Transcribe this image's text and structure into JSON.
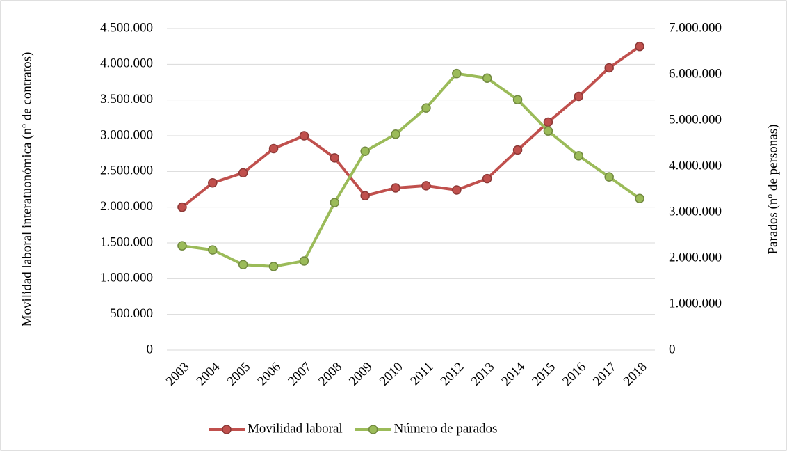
{
  "chart_data": {
    "type": "line",
    "categories": [
      "2003",
      "2004",
      "2005",
      "2006",
      "2007",
      "2008",
      "2009",
      "2010",
      "2011",
      "2012",
      "2013",
      "2014",
      "2015",
      "2016",
      "2017",
      "2018"
    ],
    "series": [
      {
        "name": "Movilidad laboral",
        "color": "#c0504d",
        "values": [
          2000000,
          2340000,
          2480000,
          2820000,
          3000000,
          2690000,
          2160000,
          2270000,
          2300000,
          2240000,
          2400000,
          2800000,
          3190000,
          3550000,
          3950000,
          4250000
        ]
      },
      {
        "name": "Número de parados",
        "color": "#9bbb59",
        "axis": "y2",
        "values": [
          2270000,
          2180000,
          1860000,
          1820000,
          1940000,
          3210000,
          4330000,
          4700000,
          5270000,
          6020000,
          5920000,
          5450000,
          4770000,
          4230000,
          3770000,
          3300000
        ]
      }
    ],
    "y_label": "Movilidad laboral interatuonómica (nº de contratos)",
    "y2_label": "Parados (nº de personas)",
    "ylim": [
      0,
      4500000
    ],
    "yticks": [
      0,
      {
        "value": 500000,
        "label": "500.000"
      },
      {
        "value": 1000000,
        "label": "1.000.000"
      },
      {
        "value": 1500000,
        "label": "1.500.000"
      },
      {
        "value": 2000000,
        "label": "2.000.000"
      },
      {
        "value": 2500000,
        "label": "2.500.000"
      },
      {
        "value": 3000000,
        "label": "3.000.000"
      },
      {
        "value": 3500000,
        "label": "3.500.000"
      },
      {
        "value": 4000000,
        "label": "4.000.000"
      },
      {
        "value": 4500000,
        "label": "4.500.000"
      }
    ],
    "y2lim": [
      0,
      7000000
    ],
    "y2ticks": [
      0,
      {
        "value": 1000000,
        "label": "1.000.000"
      },
      {
        "value": 2000000,
        "label": "2.000.000"
      },
      {
        "value": 3000000,
        "label": "3.000.000"
      },
      {
        "value": 4000000,
        "label": "4.000.000"
      },
      {
        "value": 5000000,
        "label": "5.000.000"
      },
      {
        "value": 6000000,
        "label": "6.000.000"
      },
      {
        "value": 7000000,
        "label": "7.000.000"
      }
    ],
    "grid": true,
    "legend": "bottom"
  }
}
